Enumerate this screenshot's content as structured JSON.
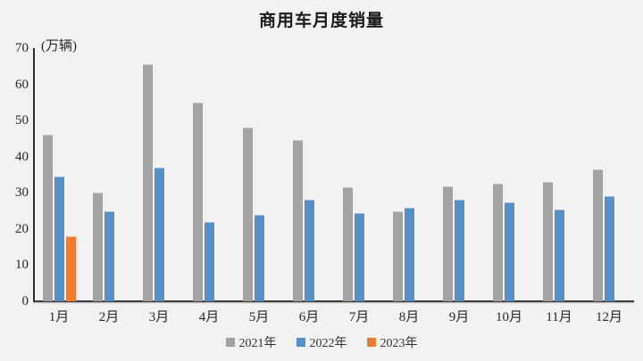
{
  "chart_data": {
    "type": "bar",
    "title": "商用车月度销量",
    "unit_label": "(万辆)",
    "categories": [
      "1月",
      "2月",
      "3月",
      "4月",
      "5月",
      "6月",
      "7月",
      "8月",
      "9月",
      "10月",
      "11月",
      "12月"
    ],
    "series": [
      {
        "name": "2021年",
        "color": "#a3a3a3",
        "values": [
          46,
          30,
          65.5,
          55,
          48,
          44.5,
          31.5,
          24.8,
          31.7,
          32.6,
          33,
          36.5
        ]
      },
      {
        "name": "2022年",
        "color": "#5590ca",
        "values": [
          34.5,
          25,
          37,
          22,
          24,
          28.2,
          24.5,
          26,
          28,
          27.3,
          25.4,
          29.2
        ]
      },
      {
        "name": "2023年",
        "color": "#ed7d31",
        "values": [
          18,
          null,
          null,
          null,
          null,
          null,
          null,
          null,
          null,
          null,
          null,
          null
        ]
      }
    ],
    "ylim": [
      0,
      70
    ],
    "ytick_step": 10,
    "xlabel": "",
    "ylabel": "",
    "legend_position": "bottom",
    "grid": false,
    "background_color": "#f2f2f2",
    "axis_color": "#3f3f3f"
  }
}
